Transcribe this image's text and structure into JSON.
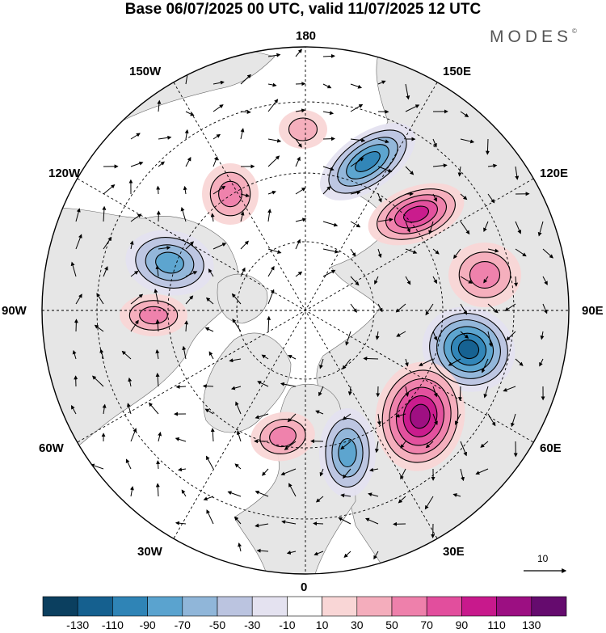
{
  "header": {
    "title": "Base 06/07/2025 00 UTC, valid 11/07/2025 12 UTC",
    "brand": "MODES",
    "brand_mark": "©"
  },
  "map": {
    "projection": "north-polar-stereographic",
    "longitude_labels": {
      "top": "180",
      "top_left": "150W",
      "top_right": "150E",
      "upper_left": "120W",
      "upper_right": "120E",
      "left": "90W",
      "right": "90E",
      "lower_left": "60W",
      "lower_right": "60E",
      "bottom_left": "30W",
      "bottom_right": "30E",
      "bottom": "0"
    },
    "reference_vector_label": "10",
    "colors": {
      "land": "#e6e6e6",
      "ocean": "#ffffff",
      "graticule": "#000000"
    },
    "anomaly_centers": [
      {
        "sign": "negative",
        "level": -90,
        "region": "East Siberian Sea / 150E"
      },
      {
        "sign": "positive",
        "level": 90,
        "region": "Yakutia / 120E"
      },
      {
        "sign": "positive",
        "level": 50,
        "region": "Central Siberia / 100E"
      },
      {
        "sign": "negative",
        "level": -110,
        "region": "West Siberia / 80E"
      },
      {
        "sign": "positive",
        "level": 110,
        "region": "Urals / 50E"
      },
      {
        "sign": "negative",
        "level": -70,
        "region": "Scandinavia / 15E"
      },
      {
        "sign": "positive",
        "level": 50,
        "region": "North Atlantic / 20W"
      },
      {
        "sign": "negative",
        "level": -70,
        "region": "Canada / 105W"
      },
      {
        "sign": "positive",
        "level": 50,
        "region": "Hudson Bay / 90W"
      },
      {
        "sign": "positive",
        "level": 50,
        "region": "Bering Sea / 170W"
      },
      {
        "sign": "positive",
        "level": 30,
        "region": "North Pacific / 180"
      }
    ]
  },
  "colorbar": {
    "colors": [
      "#0b3f5f",
      "#15608f",
      "#2f84b6",
      "#5aa3cf",
      "#90b6d9",
      "#bbc4e0",
      "#e4e2f0",
      "#ffffff",
      "#f9d6d6",
      "#f4adbc",
      "#ee80ab",
      "#e24e9d",
      "#c8198c",
      "#9c0f82",
      "#650b6e"
    ],
    "tick_labels": [
      "-130",
      "-110",
      "-90",
      "-70",
      "-50",
      "-30",
      "-10",
      "10",
      "30",
      "50",
      "70",
      "90",
      "110",
      "130"
    ]
  }
}
